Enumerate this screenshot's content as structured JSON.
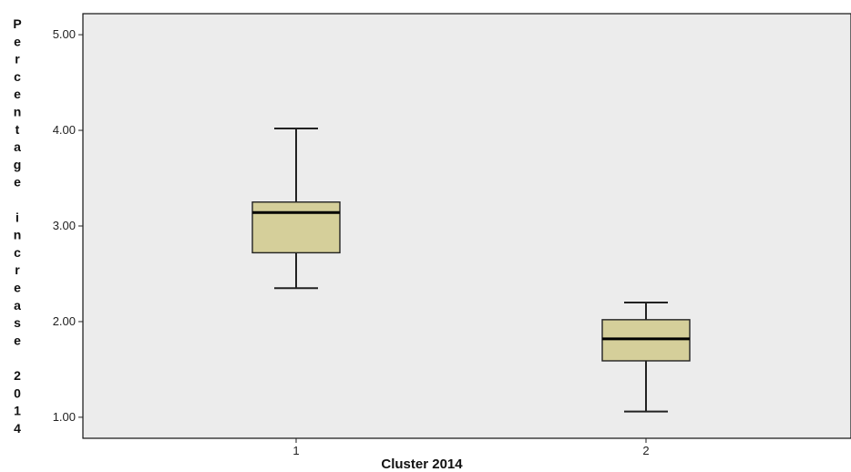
{
  "chart_data": {
    "type": "boxplot",
    "title": "",
    "xlabel": "Cluster 2014",
    "ylabel": "Percentage increase 2014",
    "categories": [
      "1",
      "2"
    ],
    "boxes": [
      {
        "category": "1",
        "min": 2.35,
        "q1": 2.72,
        "median": 3.14,
        "q3": 3.25,
        "max": 4.02
      },
      {
        "category": "2",
        "min": 1.06,
        "q1": 1.59,
        "median": 1.82,
        "q3": 2.02,
        "max": 2.2
      }
    ],
    "ylim": [
      0.78,
      5.22
    ],
    "yticks": [
      1.0,
      2.0,
      3.0,
      4.0,
      5.0
    ],
    "ytick_labels": [
      "1.00",
      "2.00",
      "3.00",
      "4.00",
      "5.00"
    ],
    "grid": false,
    "colors": {
      "plot_background": "#ececec",
      "box_fill": "#d5cf9a",
      "box_stroke": "#222222",
      "median": "#000000"
    }
  }
}
